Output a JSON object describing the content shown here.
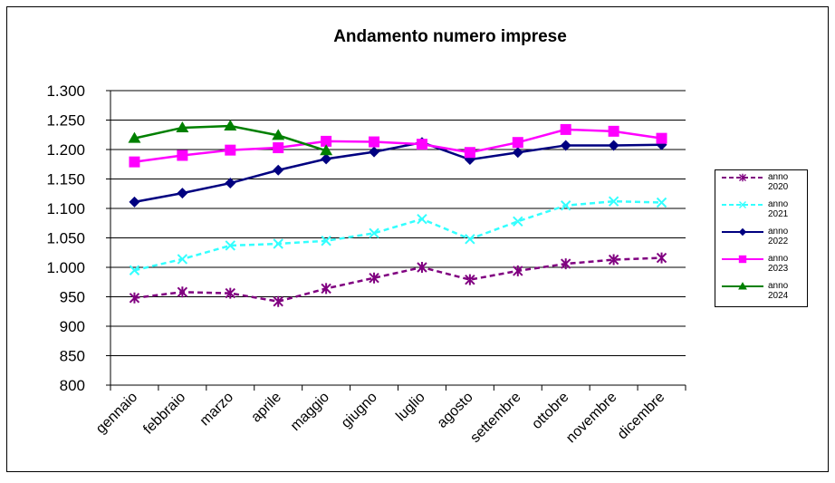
{
  "chart_data": {
    "type": "line",
    "title": "Andamento numero imprese",
    "categories": [
      "gennaio",
      "febbraio",
      "marzo",
      "aprile",
      "maggio",
      "giugno",
      "luglio",
      "agosto",
      "settembre",
      "ottobre",
      "novembre",
      "dicembre"
    ],
    "series": [
      {
        "name": "anno 2020",
        "color": "#800080",
        "marker": "asterisk",
        "dashed": true,
        "values": [
          948,
          958,
          956,
          942,
          964,
          982,
          1000,
          979,
          994,
          1006,
          1013,
          1016
        ]
      },
      {
        "name": "anno 2021",
        "color": "#33ffff",
        "marker": "x",
        "dashed": true,
        "values": [
          995,
          1014,
          1037,
          1040,
          1045,
          1058,
          1082,
          1048,
          1078,
          1105,
          1112,
          1110
        ]
      },
      {
        "name": "anno 2022",
        "color": "#000080",
        "marker": "diamond",
        "dashed": false,
        "values": [
          1111,
          1126,
          1143,
          1165,
          1184,
          1196,
          1212,
          1183,
          1195,
          1207,
          1207,
          1208
        ]
      },
      {
        "name": "anno 2023",
        "color": "#ff00ff",
        "marker": "square",
        "dashed": false,
        "values": [
          1179,
          1190,
          1199,
          1203,
          1214,
          1213,
          1209,
          1195,
          1212,
          1234,
          1231,
          1219
        ]
      },
      {
        "name": "anno 2024",
        "color": "#008000",
        "marker": "triangle",
        "dashed": false,
        "values": [
          1219,
          1237,
          1240,
          1224,
          1198,
          null,
          null,
          null,
          null,
          null,
          null,
          null
        ]
      }
    ],
    "ylim": [
      800,
      1300
    ],
    "yticks": [
      800,
      850,
      900,
      950,
      {
        "value": 1000,
        "label": "1.000"
      },
      {
        "value": 1050,
        "label": "1.050"
      },
      {
        "value": 1100,
        "label": "1.100"
      },
      {
        "value": 1150,
        "label": "1.150"
      },
      {
        "value": 1200,
        "label": "1.200"
      },
      {
        "value": 1250,
        "label": "1.250"
      },
      {
        "value": 1300,
        "label": "1.300"
      }
    ],
    "grid": true,
    "legend": "right"
  }
}
